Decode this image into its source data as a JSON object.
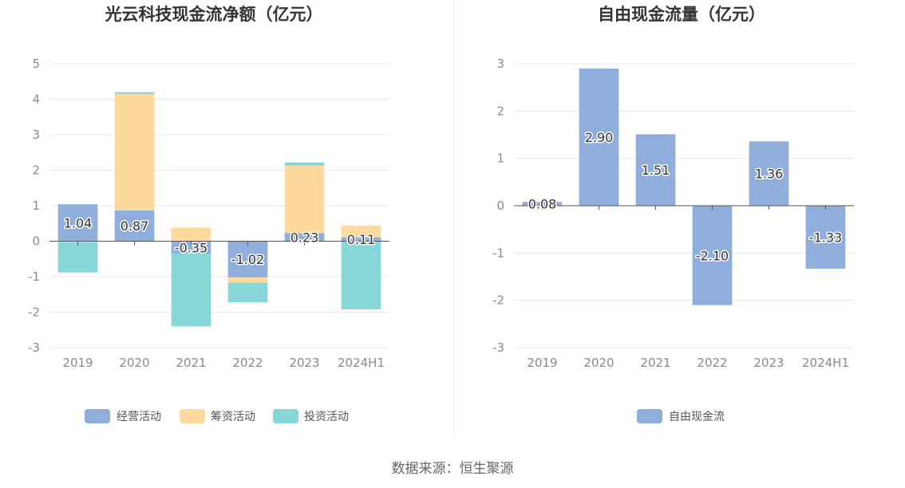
{
  "source": "数据来源：恒生聚源",
  "colors": {
    "operating": "#8faedb",
    "financing": "#fed99d",
    "investing": "#87d6d8",
    "free_cash_flow": "#8faedb",
    "grid": "#e4e6ef",
    "axis": "#555555"
  },
  "chart_data": [
    {
      "type": "bar",
      "stacked": true,
      "title": "光云科技现金流净额（亿元）",
      "categories": [
        "2019",
        "2020",
        "2021",
        "2022",
        "2023",
        "2024H1"
      ],
      "ylim": [
        -3,
        5
      ],
      "yticks": [
        5,
        4,
        3,
        2,
        1,
        0,
        -1,
        -2,
        -3
      ],
      "grid": true,
      "legend_position": "bottom",
      "series": [
        {
          "name": "经营活动",
          "values": [
            1.04,
            0.87,
            -0.35,
            -1.02,
            0.23,
            0.11
          ],
          "labels": [
            "1.04",
            "0.87",
            "-0.35",
            "-1.02",
            "0.23",
            "0.11"
          ]
        },
        {
          "name": "筹资活动",
          "values": [
            -0.03,
            3.28,
            0.38,
            -0.15,
            1.9,
            0.33
          ]
        },
        {
          "name": "投资活动",
          "values": [
            -0.85,
            0.05,
            -2.05,
            -0.55,
            0.09,
            -1.92
          ]
        }
      ]
    },
    {
      "type": "bar",
      "stacked": false,
      "title": "自由现金流量（亿元）",
      "categories": [
        "2019",
        "2020",
        "2021",
        "2022",
        "2023",
        "2024H1"
      ],
      "ylim": [
        -3,
        3
      ],
      "yticks": [
        3,
        2,
        1,
        0,
        -1,
        -2,
        -3
      ],
      "grid": true,
      "legend_position": "bottom",
      "series": [
        {
          "name": "自由现金流",
          "values": [
            0.08,
            2.9,
            1.51,
            -2.1,
            1.36,
            -1.33
          ],
          "labels": [
            "0.08",
            "2.90",
            "1.51",
            "-2.10",
            "1.36",
            "-1.33"
          ]
        }
      ]
    }
  ]
}
